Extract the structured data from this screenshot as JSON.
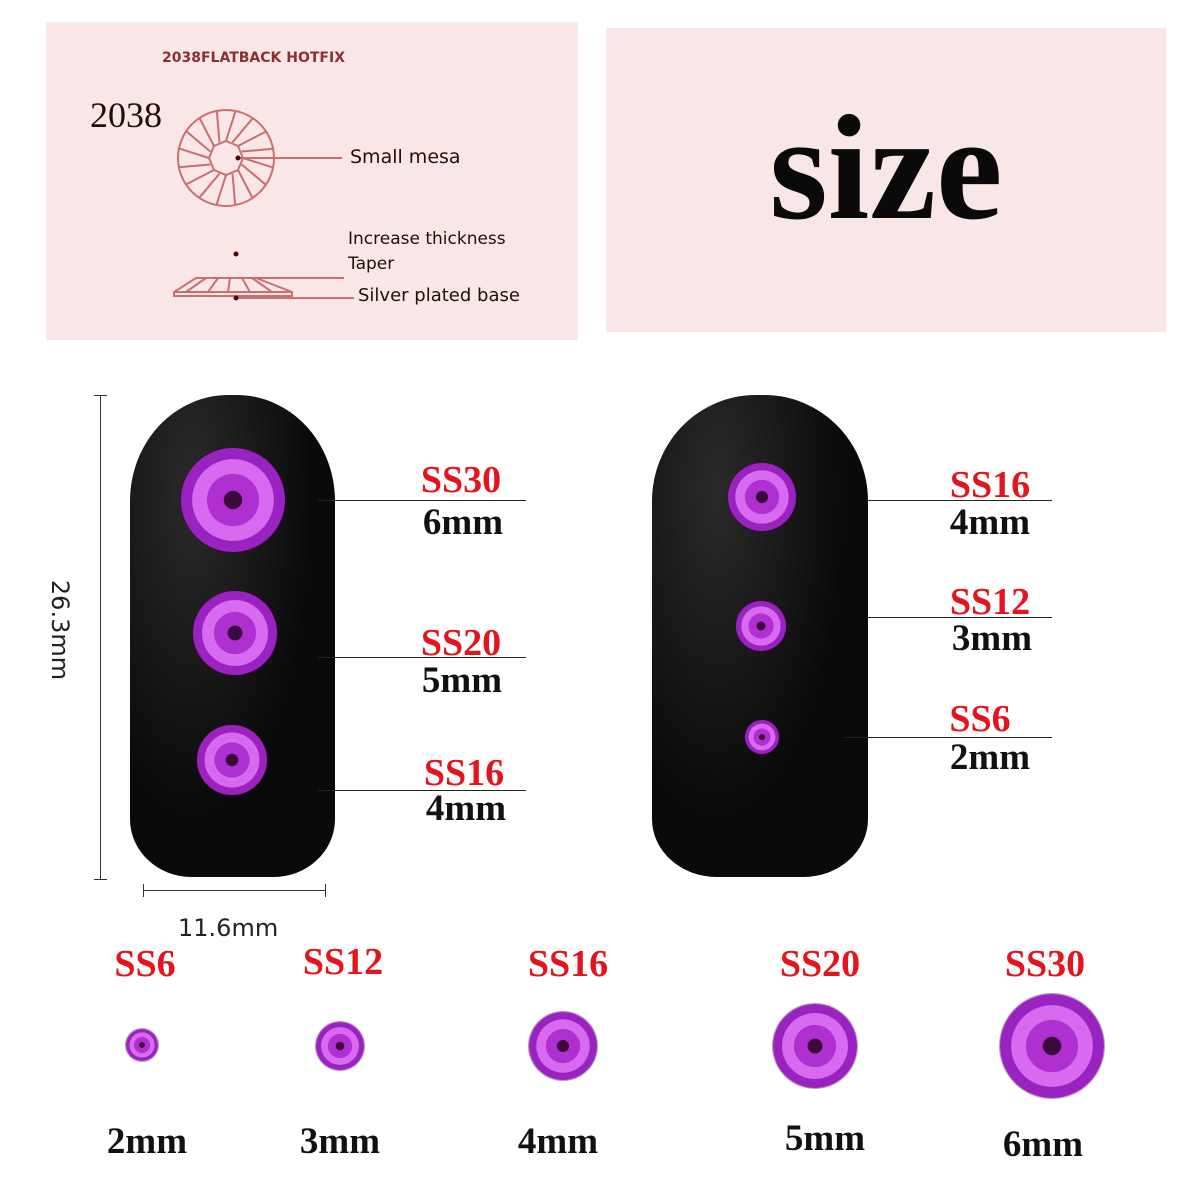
{
  "diagram": {
    "heading": "2038FLATBACK HOTFIX",
    "model": "2038",
    "labels": [
      "Small mesa",
      "Increase thickness",
      "Taper",
      "Silver plated base"
    ]
  },
  "title": "size",
  "dimensions": {
    "height": "26.3mm",
    "width": "11.6mm"
  },
  "left_nail": [
    {
      "code": "SS30",
      "mm": "6mm"
    },
    {
      "code": "SS20",
      "mm": "5mm"
    },
    {
      "code": "SS16",
      "mm": "4mm"
    }
  ],
  "right_nail": [
    {
      "code": "SS16",
      "mm": "4mm"
    },
    {
      "code": "SS12",
      "mm": "3mm"
    },
    {
      "code": "SS6",
      "mm": "2mm"
    }
  ],
  "size_row": [
    {
      "code": "SS6",
      "mm": "2mm"
    },
    {
      "code": "SS12",
      "mm": "3mm"
    },
    {
      "code": "SS16",
      "mm": "4mm"
    },
    {
      "code": "SS20",
      "mm": "5mm"
    },
    {
      "code": "SS30",
      "mm": "6mm"
    }
  ],
  "colors": {
    "label_red": "#e3141b",
    "gem_purple": "#b02fd0",
    "panel_pink": "#f9e6e6"
  }
}
